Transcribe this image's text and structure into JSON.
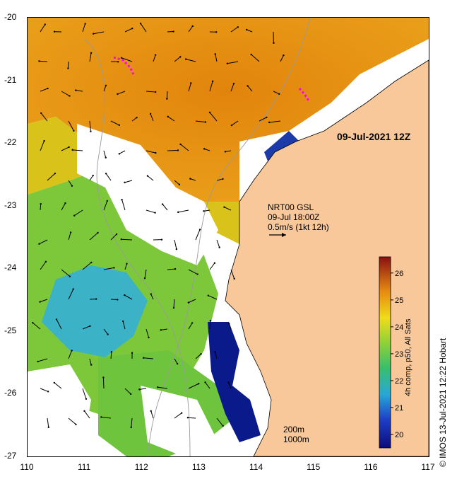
{
  "map": {
    "timestamp": "09-Jul-2021 12Z",
    "x_ticks": [
      "110",
      "111",
      "112",
      "113",
      "114",
      "115",
      "116",
      "117"
    ],
    "y_ticks": [
      "-20",
      "-21",
      "-22",
      "-23",
      "-24",
      "-25",
      "-26",
      "-27"
    ],
    "current_label": {
      "line1": "NRT00 GSL",
      "line2": "09-Jul 18:00Z",
      "line3": "0.5m/s (1kt 12h)"
    },
    "isobaths": {
      "label1": "200m",
      "label2": "1000m"
    },
    "colorbar": {
      "ticks": [
        "26",
        "25",
        "24",
        "23",
        "22",
        "21",
        "20"
      ],
      "title": "4h comp, p50, All Sats",
      "range": [
        19.5,
        26.6
      ]
    },
    "credit": "© IMOS 13-Jul-2021 12:22 Hobart",
    "colors": {
      "land": "#f8c79a",
      "warm": "#e0860f",
      "mid": "#8fcf2a",
      "cool": "#2fa8c8",
      "cold": "#081a80",
      "nodata": "#ffffff"
    }
  }
}
